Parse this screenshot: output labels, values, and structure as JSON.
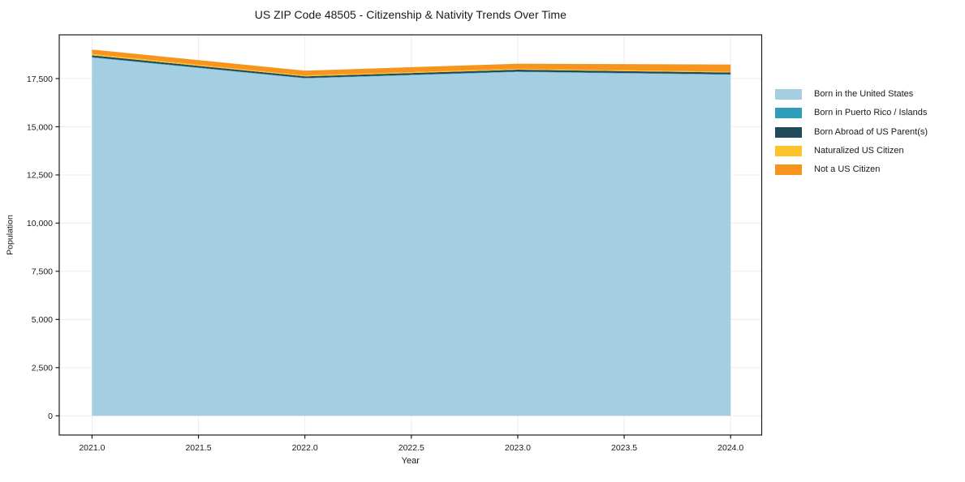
{
  "chart_data": {
    "type": "area",
    "stacked": true,
    "title": "US ZIP Code 48505 - Citizenship & Nativity Trends Over Time",
    "xlabel": "Year",
    "ylabel": "Population",
    "x": [
      2021,
      2022,
      2023,
      2024
    ],
    "series": [
      {
        "name": "Born in the United States",
        "color": "#a4cee2",
        "values": [
          18590,
          17510,
          17845,
          17700
        ]
      },
      {
        "name": "Born in Puerto Rico / Islands",
        "color": "#2f9fb9",
        "values": [
          25,
          20,
          20,
          20
        ]
      },
      {
        "name": "Born Abroad of US Parent(s)",
        "color": "#20495a",
        "values": [
          90,
          85,
          95,
          95
        ]
      },
      {
        "name": "Naturalized US Citizen",
        "color": "#fcc32d",
        "values": [
          65,
          45,
          45,
          40
        ]
      },
      {
        "name": "Not a US Citizen",
        "color": "#f7941e",
        "values": [
          235,
          250,
          265,
          375
        ]
      }
    ],
    "xticks": {
      "values": [
        2021.0,
        2021.5,
        2022.0,
        2022.5,
        2023.0,
        2023.5,
        2024.0
      ],
      "labels": [
        "2021.0",
        "2021.5",
        "2022.0",
        "2022.5",
        "2023.0",
        "2023.5",
        "2024.0"
      ]
    },
    "yticks": {
      "values": [
        0,
        2500,
        5000,
        7500,
        10000,
        12500,
        15000,
        17500
      ],
      "labels": [
        "0",
        "2,500",
        "5,000",
        "7,500",
        "10,000",
        "12,500",
        "15,000",
        "17,500"
      ]
    },
    "xlim": [
      2020.846,
      2024.146
    ],
    "ylim": [
      -996,
      19770
    ],
    "grid": true,
    "legend_position": "right-outside",
    "axis_color": "#1a1a1a",
    "grid_color": "#ececec"
  }
}
